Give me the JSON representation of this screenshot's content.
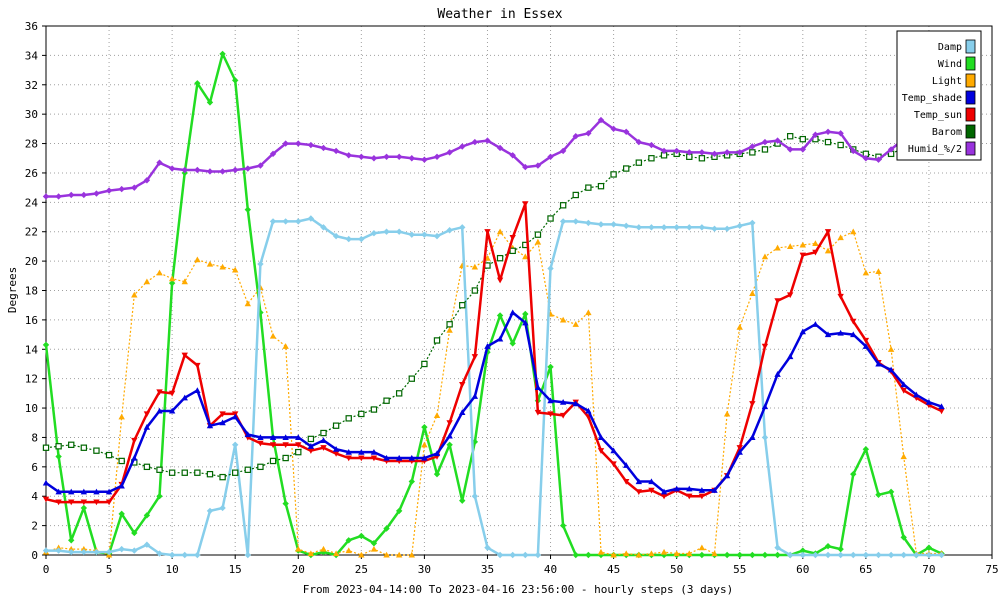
{
  "chart_data": {
    "type": "line",
    "title": "Weather in Essex",
    "xlabel": "From 2023-04-14:00 To 2023-04-16 23:56:00 - hourly steps (3 days)",
    "ylabel": "Degrees",
    "xlim": [
      0,
      75
    ],
    "ylim": [
      0,
      36
    ],
    "x_ticks": [
      "0",
      "5",
      "10",
      "15",
      "20",
      "25",
      "30",
      "35",
      "40",
      "45",
      "50",
      "55",
      "60",
      "65",
      "70",
      "75"
    ],
    "y_ticks": [
      "0",
      "2",
      "4",
      "6",
      "8",
      "10",
      "12",
      "14",
      "16",
      "18",
      "20",
      "22",
      "24",
      "26",
      "28",
      "30",
      "32",
      "34",
      "36"
    ],
    "grid": true,
    "legend_position": "top-right",
    "series": [
      {
        "name": "Damp",
        "color": "#87ceeb",
        "marker": "diamond",
        "style": "solid",
        "values": [
          0.3,
          0.3,
          0.2,
          0.2,
          0.2,
          0.2,
          0.4,
          0.3,
          0.7,
          0.1,
          0.0,
          0.0,
          0.0,
          3.0,
          3.2,
          7.5,
          0.0,
          19.8,
          22.7,
          22.7,
          22.7,
          22.9,
          22.3,
          21.7,
          21.5,
          21.5,
          21.9,
          22.0,
          22.0,
          21.8,
          21.8,
          21.7,
          22.1,
          22.3,
          4.0,
          0.5,
          0.0,
          0.0,
          0.0,
          0.0,
          19.5,
          22.7,
          22.7,
          22.6,
          22.5,
          22.5,
          22.4,
          22.3,
          22.3,
          22.3,
          22.3,
          22.3,
          22.3,
          22.2,
          22.2,
          22.4,
          22.6,
          8.0,
          0.5,
          0.0,
          0.0,
          0.0,
          0.0,
          0.0,
          0.0,
          0.0,
          0.0,
          0.0,
          0.0,
          0.0,
          0.0,
          0.0
        ]
      },
      {
        "name": "Wind",
        "color": "#22dd22",
        "marker": "diamond",
        "style": "solid",
        "values": [
          14.3,
          6.7,
          1.0,
          3.2,
          0.2,
          0.1,
          2.8,
          1.5,
          2.7,
          4.0,
          18.5,
          26.0,
          32.1,
          30.8,
          34.1,
          32.3,
          23.5,
          16.5,
          8.0,
          3.5,
          0.3,
          0.0,
          0.2,
          0.0,
          1.0,
          1.3,
          0.8,
          1.8,
          3.0,
          5.0,
          8.7,
          5.5,
          7.5,
          3.7,
          7.7,
          13.8,
          16.3,
          14.4,
          16.4,
          10.5,
          12.8,
          2.0,
          0.0,
          0.0,
          0.0,
          0.0,
          0.0,
          0.0,
          0.0,
          0.0,
          0.0,
          0.0,
          0.0,
          0.0,
          0.0,
          0.0,
          0.0,
          0.0,
          0.0,
          0.0,
          0.3,
          0.1,
          0.6,
          0.4,
          5.5,
          7.2,
          4.1,
          4.3,
          1.2,
          0.0,
          0.5,
          0.1
        ]
      },
      {
        "name": "Light",
        "color": "#ffaa00",
        "marker": "triangle",
        "style": "dotted",
        "values": [
          0.2,
          0.5,
          0.4,
          0.4,
          0.3,
          0.0,
          9.4,
          17.7,
          18.6,
          19.2,
          18.8,
          18.6,
          20.1,
          19.8,
          19.6,
          19.4,
          17.1,
          18.2,
          14.9,
          14.2,
          0.4,
          0.1,
          0.4,
          0.1,
          0.3,
          0.0,
          0.4,
          0.0,
          0.0,
          0.0,
          7.5,
          9.5,
          15.3,
          19.7,
          19.6,
          20.2,
          22.0,
          20.9,
          20.3,
          21.3,
          16.4,
          16.0,
          15.7,
          16.5,
          0.2,
          0.0,
          0.1,
          0.0,
          0.1,
          0.2,
          0.1,
          0.1,
          0.5,
          0.1,
          9.6,
          15.5,
          17.8,
          20.3,
          20.9,
          21.0,
          21.1,
          21.2,
          20.7,
          21.6,
          22.0,
          19.2,
          19.3,
          14.0,
          6.7,
          0.1,
          0.1,
          0.1
        ]
      },
      {
        "name": "Temp_shade",
        "color": "#0000dd",
        "marker": "triangle",
        "style": "solid",
        "values": [
          4.9,
          4.3,
          4.3,
          4.3,
          4.3,
          4.3,
          4.7,
          6.6,
          8.7,
          9.8,
          9.8,
          10.7,
          11.2,
          8.8,
          9.0,
          9.4,
          8.2,
          8.0,
          8.0,
          8.0,
          8.0,
          7.4,
          7.8,
          7.2,
          7.0,
          7.0,
          7.0,
          6.6,
          6.6,
          6.6,
          6.6,
          6.9,
          8.1,
          9.7,
          10.8,
          14.2,
          14.7,
          16.5,
          15.8,
          11.4,
          10.5,
          10.4,
          10.3,
          9.8,
          8.0,
          7.1,
          6.1,
          5.0,
          5.0,
          4.3,
          4.5,
          4.5,
          4.4,
          4.4,
          5.4,
          7.0,
          8.0,
          10.1,
          12.3,
          13.5,
          15.2,
          15.7,
          15.0,
          15.1,
          15.0,
          14.2,
          13.0,
          12.6,
          11.6,
          10.9,
          10.4,
          10.1
        ]
      },
      {
        "name": "Temp_sun",
        "color": "#ee0000",
        "marker": "triangle-down",
        "style": "solid",
        "values": [
          3.8,
          3.6,
          3.6,
          3.6,
          3.6,
          3.6,
          4.8,
          7.8,
          9.6,
          11.1,
          11.0,
          13.6,
          12.9,
          8.8,
          9.6,
          9.6,
          8.0,
          7.6,
          7.5,
          7.5,
          7.5,
          7.1,
          7.3,
          6.9,
          6.6,
          6.6,
          6.6,
          6.4,
          6.4,
          6.4,
          6.4,
          6.7,
          9.0,
          11.6,
          13.5,
          22.0,
          18.7,
          21.6,
          23.9,
          9.7,
          9.6,
          9.5,
          10.4,
          9.4,
          7.1,
          6.2,
          5.0,
          4.3,
          4.4,
          4.0,
          4.4,
          4.0,
          4.0,
          4.4,
          5.4,
          7.3,
          10.3,
          14.2,
          17.3,
          17.7,
          20.4,
          20.6,
          22.0,
          17.6,
          15.9,
          14.6,
          13.1,
          12.5,
          11.2,
          10.7,
          10.2,
          9.8
        ]
      },
      {
        "name": "Barom",
        "color": "#006600",
        "marker": "square-open",
        "style": "dotted",
        "values": [
          7.3,
          7.4,
          7.5,
          7.3,
          7.1,
          6.8,
          6.4,
          6.3,
          6.0,
          5.8,
          5.6,
          5.6,
          5.6,
          5.5,
          5.3,
          5.6,
          5.8,
          6.0,
          6.4,
          6.6,
          7.0,
          7.9,
          8.3,
          8.8,
          9.3,
          9.6,
          9.9,
          10.5,
          11.0,
          12.0,
          13.0,
          14.6,
          15.7,
          17.0,
          18.0,
          19.7,
          20.2,
          20.7,
          21.1,
          21.8,
          22.9,
          23.8,
          24.5,
          25.0,
          25.1,
          25.9,
          26.3,
          26.7,
          27.0,
          27.2,
          27.3,
          27.1,
          27.0,
          27.1,
          27.2,
          27.3,
          27.4,
          27.6,
          28.0,
          28.5,
          28.3,
          28.3,
          28.1,
          27.9,
          27.6,
          27.3,
          27.1,
          27.3,
          27.7,
          null,
          null,
          null
        ]
      },
      {
        "name": "Humid_%/2",
        "color": "#9933dd",
        "marker": "diamond",
        "style": "solid",
        "values": [
          24.4,
          24.4,
          24.5,
          24.5,
          24.6,
          24.8,
          24.9,
          25.0,
          25.5,
          26.7,
          26.3,
          26.2,
          26.2,
          26.1,
          26.1,
          26.2,
          26.3,
          26.5,
          27.3,
          28.0,
          28.0,
          27.9,
          27.7,
          27.5,
          27.2,
          27.1,
          27.0,
          27.1,
          27.1,
          27.0,
          26.9,
          27.1,
          27.4,
          27.8,
          28.1,
          28.2,
          27.7,
          27.2,
          26.4,
          26.5,
          27.1,
          27.5,
          28.5,
          28.7,
          29.6,
          29.0,
          28.8,
          28.1,
          27.9,
          27.5,
          27.5,
          27.4,
          27.4,
          27.3,
          27.4,
          27.4,
          27.8,
          28.1,
          28.2,
          27.6,
          27.6,
          28.6,
          28.8,
          28.7,
          27.5,
          27.0,
          26.9,
          27.6,
          28.3,
          29.0,
          29.0,
          29.1
        ]
      }
    ]
  }
}
